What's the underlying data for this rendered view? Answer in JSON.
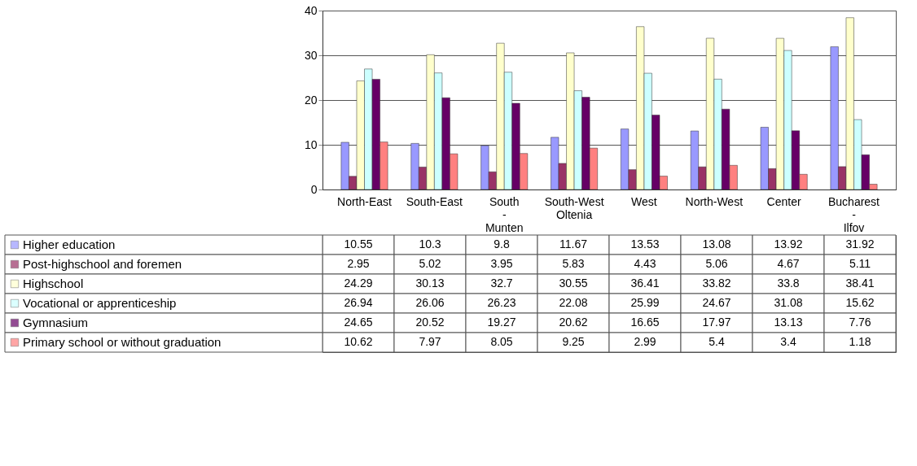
{
  "chart_data": {
    "type": "bar",
    "categories": [
      "North-East",
      "South-East",
      "South - Munten",
      "South-West Oltenia",
      "West",
      "North-West",
      "Center",
      "Bucharest - Ilfov"
    ],
    "series": [
      {
        "name": "Higher education",
        "color": "#9999ff",
        "values": [
          10.55,
          10.3,
          9.8,
          11.67,
          13.53,
          13.08,
          13.92,
          31.92
        ]
      },
      {
        "name": "Post-highschool and foremen",
        "color": "#993366",
        "values": [
          2.95,
          5.02,
          3.95,
          5.83,
          4.43,
          5.06,
          4.67,
          5.11
        ]
      },
      {
        "name": "Highschool",
        "color": "#ffffcc",
        "values": [
          24.29,
          30.13,
          32.7,
          30.55,
          36.41,
          33.82,
          33.8,
          38.41
        ]
      },
      {
        "name": "Vocational or apprenticeship",
        "color": "#ccffff",
        "values": [
          26.94,
          26.06,
          26.23,
          22.08,
          25.99,
          24.67,
          31.08,
          15.62
        ]
      },
      {
        "name": "Gymnasium",
        "color": "#660066",
        "values": [
          24.65,
          20.52,
          19.27,
          20.62,
          16.65,
          17.97,
          13.13,
          7.76
        ]
      },
      {
        "name": "Primary school or without graduation",
        "color": "#ff8080",
        "values": [
          10.62,
          7.97,
          8.05,
          9.25,
          2.99,
          5.4,
          3.4,
          1.18
        ]
      }
    ],
    "ylim": [
      0,
      40
    ],
    "yticks": [
      0,
      10,
      20,
      30,
      40
    ],
    "grid": "y",
    "data_labels": true,
    "legend": "bottom left"
  }
}
